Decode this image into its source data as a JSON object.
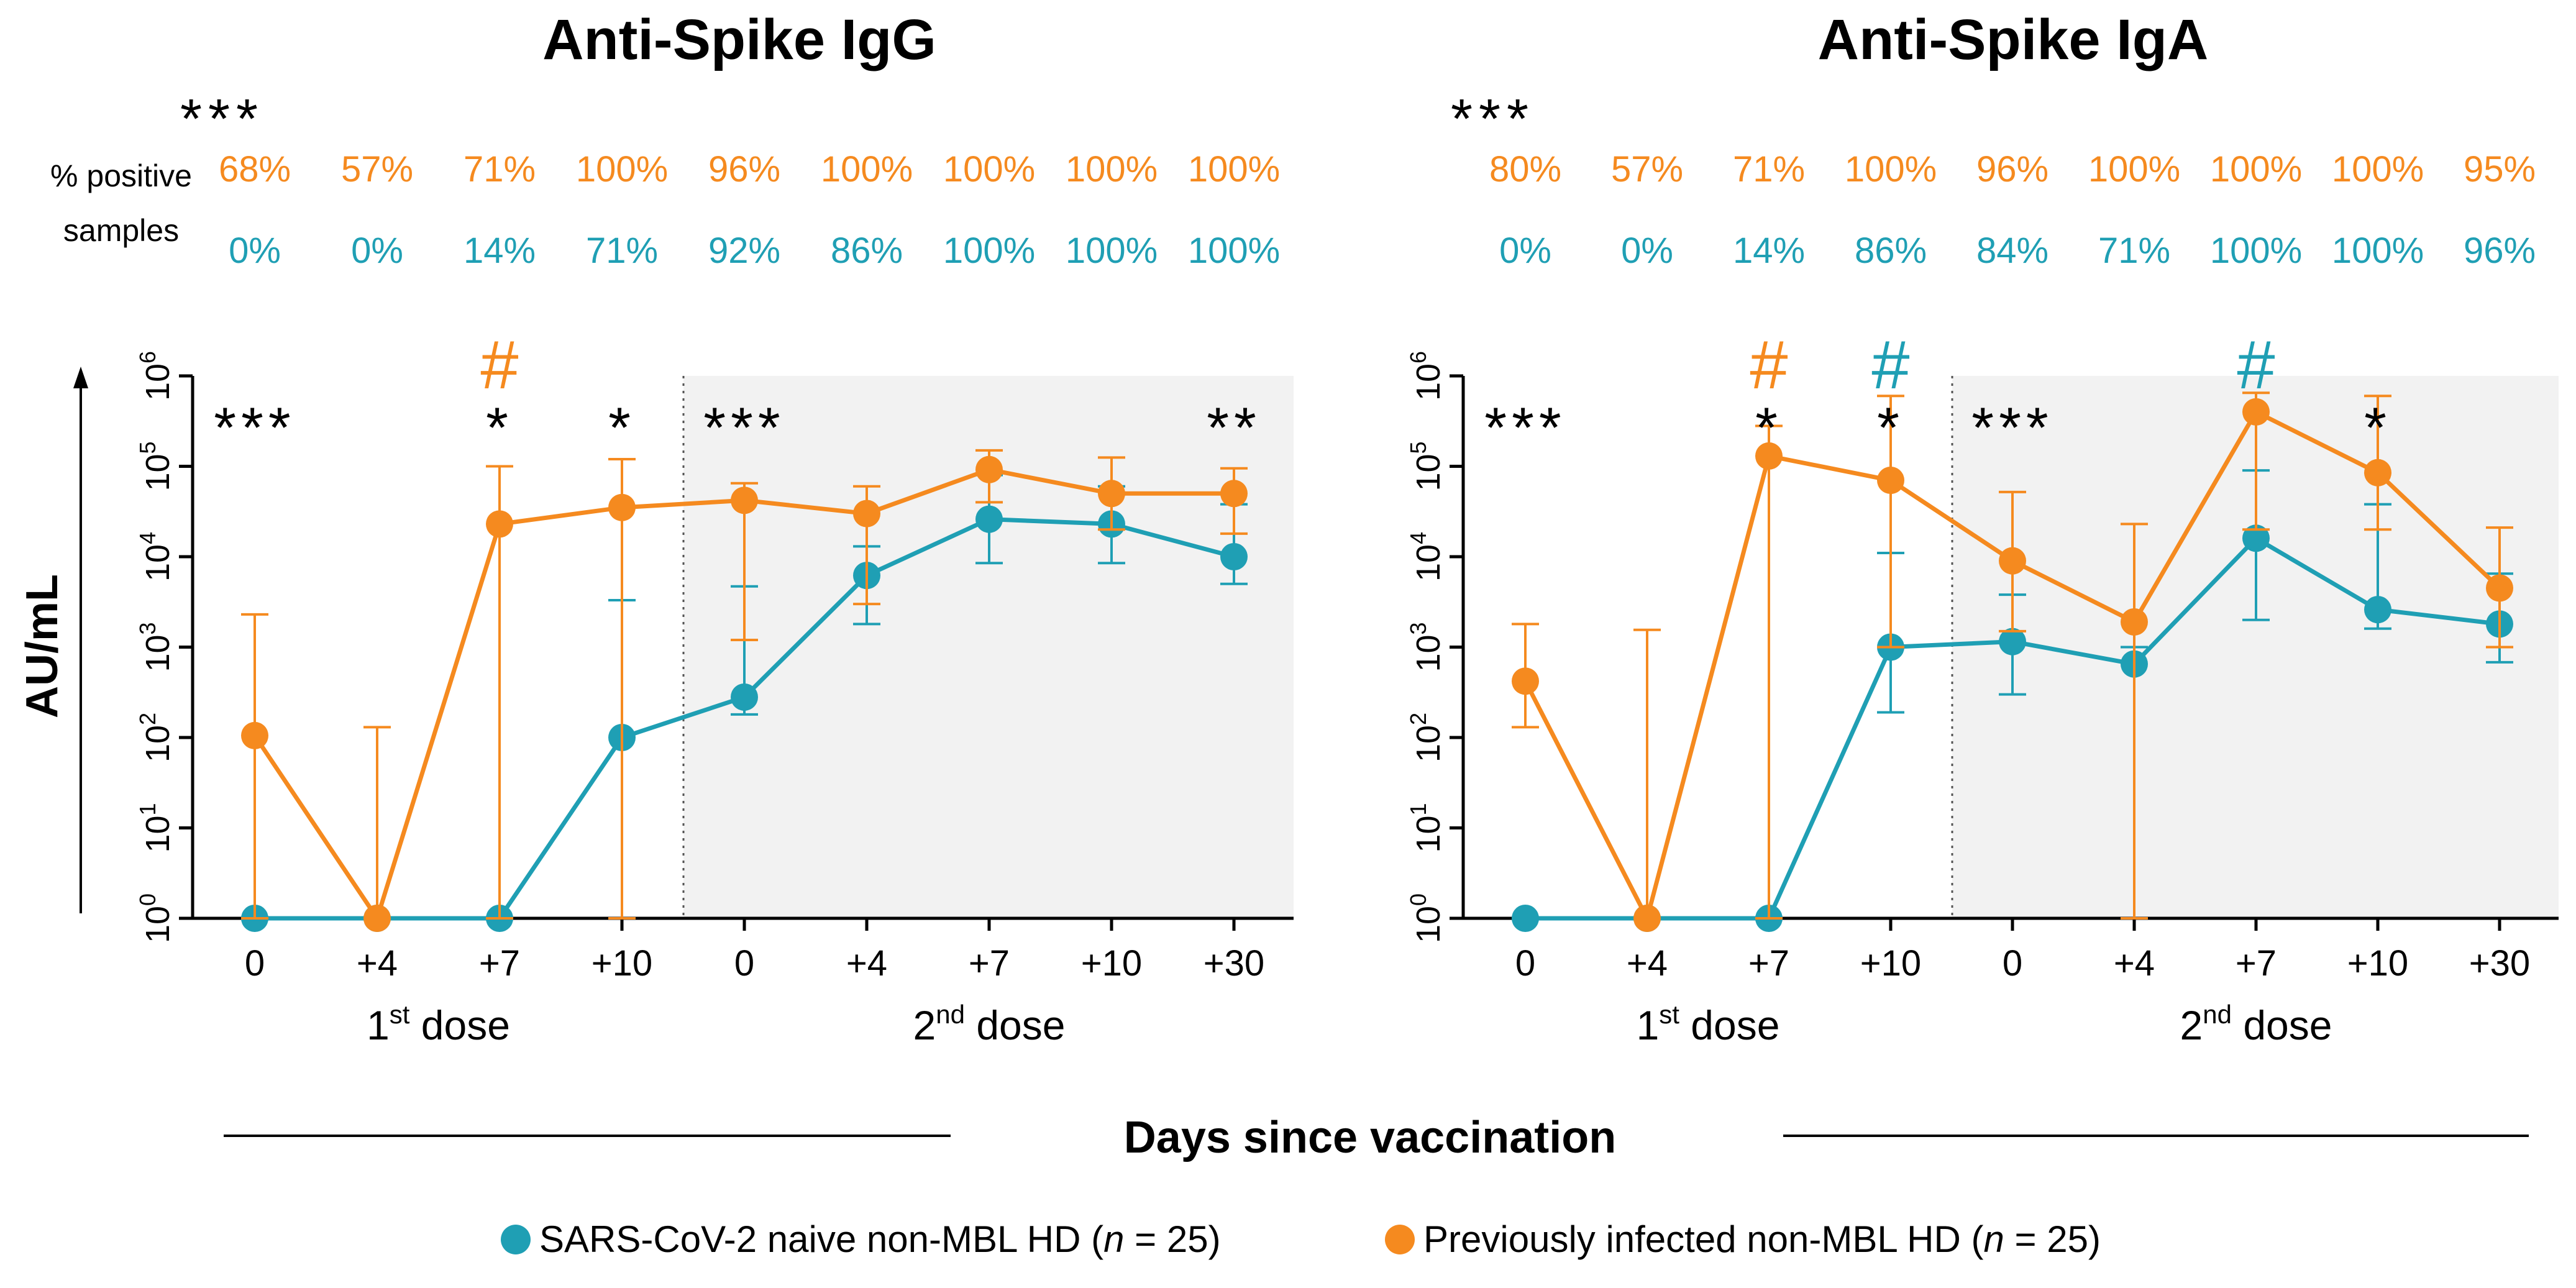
{
  "colors": {
    "naive": "#1f9fb4",
    "infected": "#f58a1f",
    "shade": "#f2f2f2",
    "axis": "#000000"
  },
  "shared": {
    "pct_label_line1": "% positive",
    "pct_label_line2": "samples",
    "ylabel": "AU/mL",
    "xlabel": "Days since vaccination",
    "dose1_label": "1",
    "dose1_sup": "st",
    "dose2_label": "2",
    "dose2_sup": "nd",
    "dose_suffix": " dose",
    "legend": {
      "naive_pre": "SARS-CoV-2 naive non-MBL HD (",
      "infected_pre": "Previously infected non-MBL HD (",
      "n_italic": "n",
      "n_post": " = 25)"
    }
  },
  "chart_data": [
    {
      "type": "line",
      "title": "Anti-Spike IgG",
      "categories": [
        "0",
        "+4",
        "+7",
        "+10",
        "0",
        "+4",
        "+7",
        "+10",
        "+30"
      ],
      "yscale": "log10",
      "ylim": [
        1,
        1000000
      ],
      "ytick_bases": [
        "10",
        "10",
        "10",
        "10",
        "10",
        "10",
        "10"
      ],
      "ytick_exps": [
        "0",
        "1",
        "2",
        "3",
        "4",
        "5",
        "6"
      ],
      "header_sig": "***",
      "series": [
        {
          "name": "SARS-CoV-2 naive non-MBL HD (n = 25)",
          "key": "naive",
          "values": [
            1,
            1,
            1,
            100,
            280,
            6200,
            26000,
            23000,
            10000
          ],
          "err_low": [
            1,
            1,
            1,
            1,
            180,
            1800,
            8500,
            8500,
            5000
          ],
          "err_high": [
            1,
            1,
            1,
            3300,
            4700,
            13000,
            80000,
            60000,
            38000
          ],
          "pct_positive": [
            "0%",
            "0%",
            "14%",
            "71%",
            "92%",
            "86%",
            "100%",
            "100%",
            "100%"
          ]
        },
        {
          "name": "Previously infected non-MBL HD (n = 25)",
          "key": "infected",
          "values": [
            105,
            1,
            23000,
            35000,
            42000,
            30000,
            92000,
            50000,
            50000
          ],
          "err_low": [
            1,
            1,
            1,
            1,
            1200,
            3000,
            40000,
            20000,
            18000
          ],
          "err_high": [
            2300,
            130,
            100000,
            120000,
            65000,
            60000,
            150000,
            125000,
            95000
          ],
          "pct_positive": [
            "68%",
            "57%",
            "71%",
            "100%",
            "96%",
            "100%",
            "100%",
            "100%",
            "100%"
          ]
        }
      ],
      "significance": [
        {
          "index": 0,
          "text": "***"
        },
        {
          "index": 2,
          "text": "*"
        },
        {
          "index": 3,
          "text": "*"
        },
        {
          "index": 4,
          "text": "***"
        },
        {
          "index": 8,
          "text": "**"
        }
      ],
      "hash_marks": [
        {
          "index": 2,
          "text": "#",
          "series": "infected"
        }
      ]
    },
    {
      "type": "line",
      "title": "Anti-Spike IgA",
      "categories": [
        "0",
        "+4",
        "+7",
        "+10",
        "0",
        "+4",
        "+7",
        "+10",
        "+30"
      ],
      "yscale": "log10",
      "ylim": [
        1,
        1000000
      ],
      "ytick_bases": [
        "10",
        "10",
        "10",
        "10",
        "10",
        "10",
        "10"
      ],
      "ytick_exps": [
        "0",
        "1",
        "2",
        "3",
        "4",
        "5",
        "6"
      ],
      "header_sig": "***",
      "series": [
        {
          "name": "SARS-CoV-2 naive non-MBL HD (n = 25)",
          "key": "naive",
          "values": [
            1,
            1,
            1,
            1000,
            1150,
            650,
            16000,
            2600,
            1800
          ],
          "err_low": [
            1,
            1,
            1,
            190,
            300,
            1,
            2000,
            1600,
            680
          ],
          "err_high": [
            1,
            1,
            1,
            11000,
            3800,
            1000,
            90000,
            38000,
            6500
          ],
          "pct_positive": [
            "0%",
            "0%",
            "14%",
            "86%",
            "84%",
            "71%",
            "100%",
            "100%",
            "96%"
          ]
        },
        {
          "name": "Previously infected non-MBL HD (n = 25)",
          "key": "infected",
          "values": [
            420,
            1,
            130000,
            70000,
            9000,
            1900,
            400000,
            85000,
            4500
          ],
          "err_low": [
            130,
            1,
            1,
            1000,
            1500,
            1,
            20000,
            20000,
            1000
          ],
          "err_high": [
            1800,
            1550,
            280000,
            600000,
            52000,
            23000,
            650000,
            600000,
            21000
          ],
          "pct_positive": [
            "80%",
            "57%",
            "71%",
            "100%",
            "96%",
            "100%",
            "100%",
            "100%",
            "95%"
          ]
        }
      ],
      "significance": [
        {
          "index": 0,
          "text": "***"
        },
        {
          "index": 2,
          "text": "*"
        },
        {
          "index": 3,
          "text": "*"
        },
        {
          "index": 4,
          "text": "***"
        },
        {
          "index": 7,
          "text": "*"
        }
      ],
      "hash_marks": [
        {
          "index": 2,
          "text": "#",
          "series": "infected"
        },
        {
          "index": 3,
          "text": "#",
          "series": "naive"
        },
        {
          "index": 6,
          "text": "#",
          "series": "naive"
        }
      ]
    }
  ]
}
